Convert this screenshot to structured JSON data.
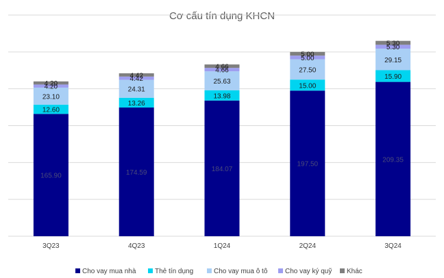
{
  "chart_data": {
    "type": "bar",
    "stacked": true,
    "title": "Cơ cấu tín dụng KHCN",
    "categories": [
      "3Q23",
      "4Q23",
      "1Q24",
      "2Q24",
      "3Q24"
    ],
    "series": [
      {
        "name": "Cho vay mua nhà",
        "color": "#00008B",
        "label_color": "#4a4a7a",
        "values": [
          165.9,
          174.59,
          184.07,
          197.5,
          209.35
        ]
      },
      {
        "name": "Thẻ tín dụng",
        "color": "#00D4F0",
        "label_color": "#1a1a1a",
        "values": [
          12.6,
          13.26,
          13.98,
          15.0,
          15.9
        ]
      },
      {
        "name": "Cho vay mua ô tô",
        "color": "#A9CFF5",
        "label_color": "#1a1a1a",
        "values": [
          23.1,
          24.31,
          25.63,
          27.5,
          29.15
        ]
      },
      {
        "name": "Cho vay ký quỹ",
        "color": "#9E9EF0",
        "label_color": "#1a1a1a",
        "values": [
          4.2,
          4.42,
          4.66,
          5.0,
          5.3
        ]
      },
      {
        "name": "Khác",
        "color": "#7F7F7F",
        "label_color": "#1a1a1a",
        "values": [
          4.2,
          4.42,
          4.66,
          5.0,
          5.3
        ]
      }
    ],
    "ylim": [
      0,
      300
    ],
    "grid": true,
    "legend_position": "bottom"
  }
}
